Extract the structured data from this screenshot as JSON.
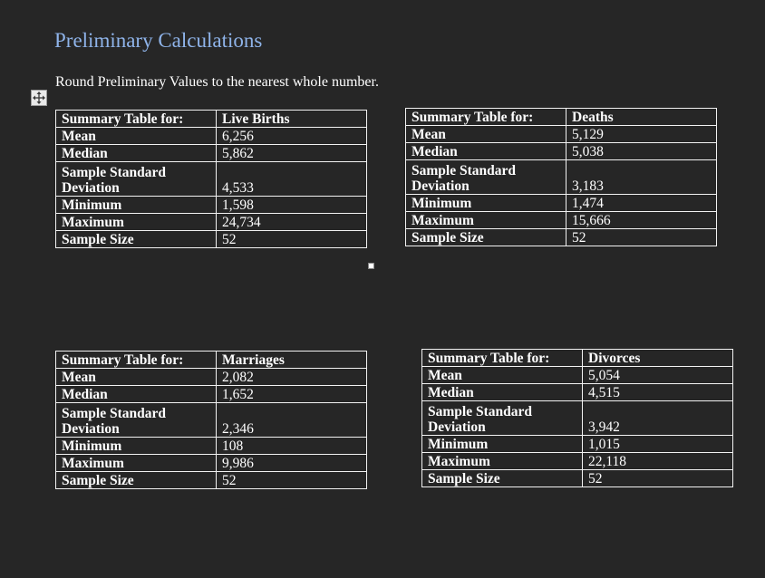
{
  "heading": "Preliminary Calculations",
  "instruction": "Round Preliminary Values to the nearest whole number.",
  "icons": {
    "move_handle": "move-arrows-icon",
    "resize_handle": "resize-handle-icon"
  },
  "colors": {
    "background": "#262626",
    "heading": "#8fb4ea",
    "text": "#ffffff",
    "border": "#f2f2f2"
  },
  "row_labels": {
    "header": "Summary Table for:",
    "mean": "Mean",
    "median": "Median",
    "sd_line1": "Sample Standard",
    "sd_line2": "Deviation",
    "minimum": "Minimum",
    "maximum": "Maximum",
    "sample_size": "Sample Size"
  },
  "tables": {
    "births": {
      "title": "Live Births",
      "mean": "6,256",
      "median": "5,862",
      "sd": "4,533",
      "minimum": "1,598",
      "maximum": "24,734",
      "sample_size": "52"
    },
    "deaths": {
      "title": "Deaths",
      "mean": "5,129",
      "median": "5,038",
      "sd": "3,183",
      "minimum": "1,474",
      "maximum": "15,666",
      "sample_size": "52"
    },
    "marriages": {
      "title": "Marriages",
      "mean": "2,082",
      "median": "1,652",
      "sd": "2,346",
      "minimum": "108",
      "maximum": "9,986",
      "sample_size": "52"
    },
    "divorces": {
      "title": "Divorces",
      "mean": "5,054",
      "median": "4,515",
      "sd": "3,942",
      "minimum": "1,015",
      "maximum": "22,118",
      "sample_size": "52"
    }
  }
}
